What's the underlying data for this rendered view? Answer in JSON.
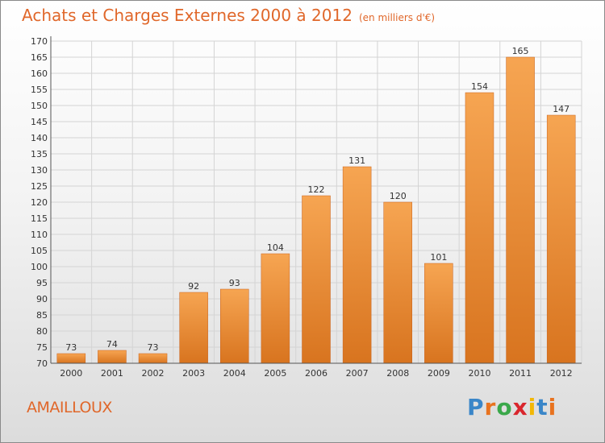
{
  "header": {
    "title": "Achats et Charges Externes 2000 à 2012",
    "unit": "(en milliers d'€)"
  },
  "commune": "AMAILLOUX",
  "logo": {
    "text": "Proxiti",
    "letter_colors": [
      "#3a86c8",
      "#e8731f",
      "#3aa84a",
      "#d9262d",
      "#f2b705",
      "#3a86c8",
      "#e8731f"
    ]
  },
  "colors": {
    "accent": "#e0672a",
    "bar_top": "#f6a552",
    "bar_bottom": "#d8741f",
    "bar_edge": "#c9611a",
    "grid": "#d4d4d4",
    "axis_text": "#333333"
  },
  "chart_data": {
    "type": "bar",
    "title": "Achats et Charges Externes 2000 à 2012",
    "subtitle": "(en milliers d'€)",
    "categories": [
      "2000",
      "2001",
      "2002",
      "2003",
      "2004",
      "2005",
      "2006",
      "2007",
      "2008",
      "2009",
      "2010",
      "2011",
      "2012"
    ],
    "values": [
      73,
      74,
      73,
      92,
      93,
      104,
      122,
      131,
      120,
      101,
      154,
      165,
      147
    ],
    "ylim": [
      70,
      170
    ],
    "ytick_step": 5,
    "grid": true,
    "xlabel": "",
    "ylabel": ""
  }
}
